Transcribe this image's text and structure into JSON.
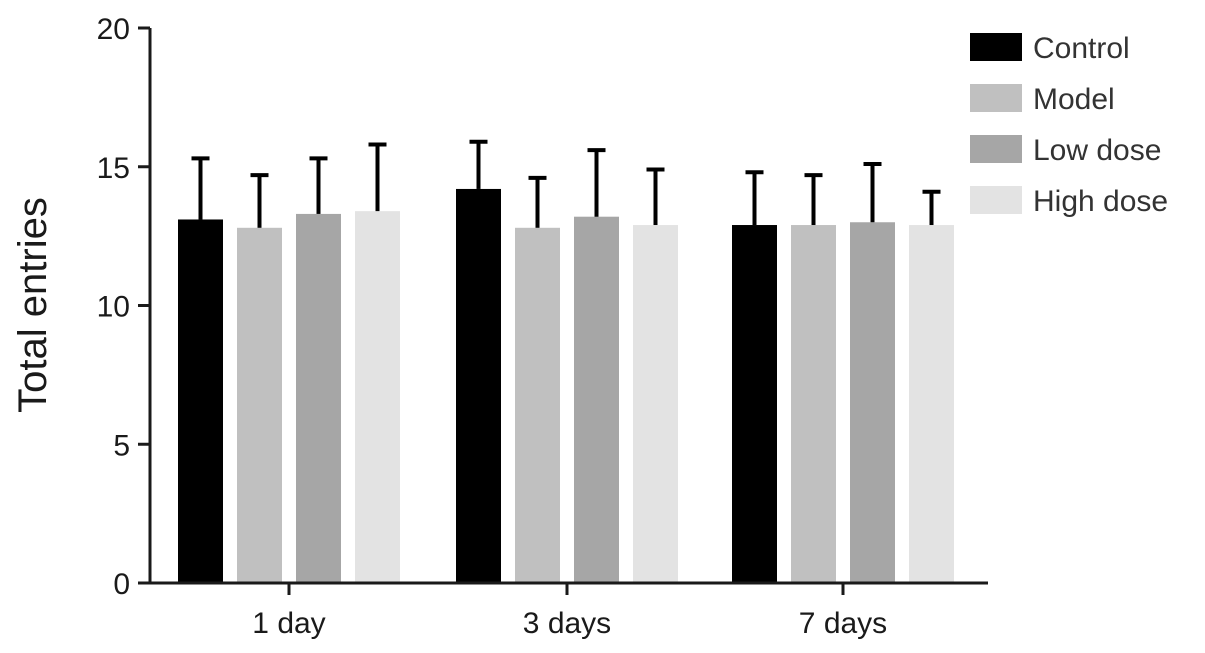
{
  "chart_data": {
    "type": "bar",
    "title": "",
    "xlabel": "",
    "ylabel": "Total entries",
    "ylim": [
      0,
      20
    ],
    "yticks": [
      0,
      5,
      10,
      15,
      20
    ],
    "categories": [
      "1 day",
      "3 days",
      "7 days"
    ],
    "series": [
      {
        "name": "Control",
        "color": "#000000",
        "values": [
          13.1,
          14.2,
          12.9
        ],
        "errors": [
          2.2,
          1.7,
          1.9
        ]
      },
      {
        "name": "Model",
        "color": "#c0c0c0",
        "values": [
          12.8,
          12.8,
          12.9
        ],
        "errors": [
          1.9,
          1.8,
          1.8
        ]
      },
      {
        "name": "Low dose",
        "color": "#a6a6a6",
        "values": [
          13.3,
          13.2,
          13.0
        ],
        "errors": [
          2.0,
          2.4,
          2.1
        ]
      },
      {
        "name": "High dose",
        "color": "#e3e3e3",
        "values": [
          13.4,
          12.9,
          12.9
        ],
        "errors": [
          2.4,
          2.0,
          1.2
        ]
      }
    ],
    "error_bars": true,
    "grid": false,
    "legend_position": "top-right"
  }
}
